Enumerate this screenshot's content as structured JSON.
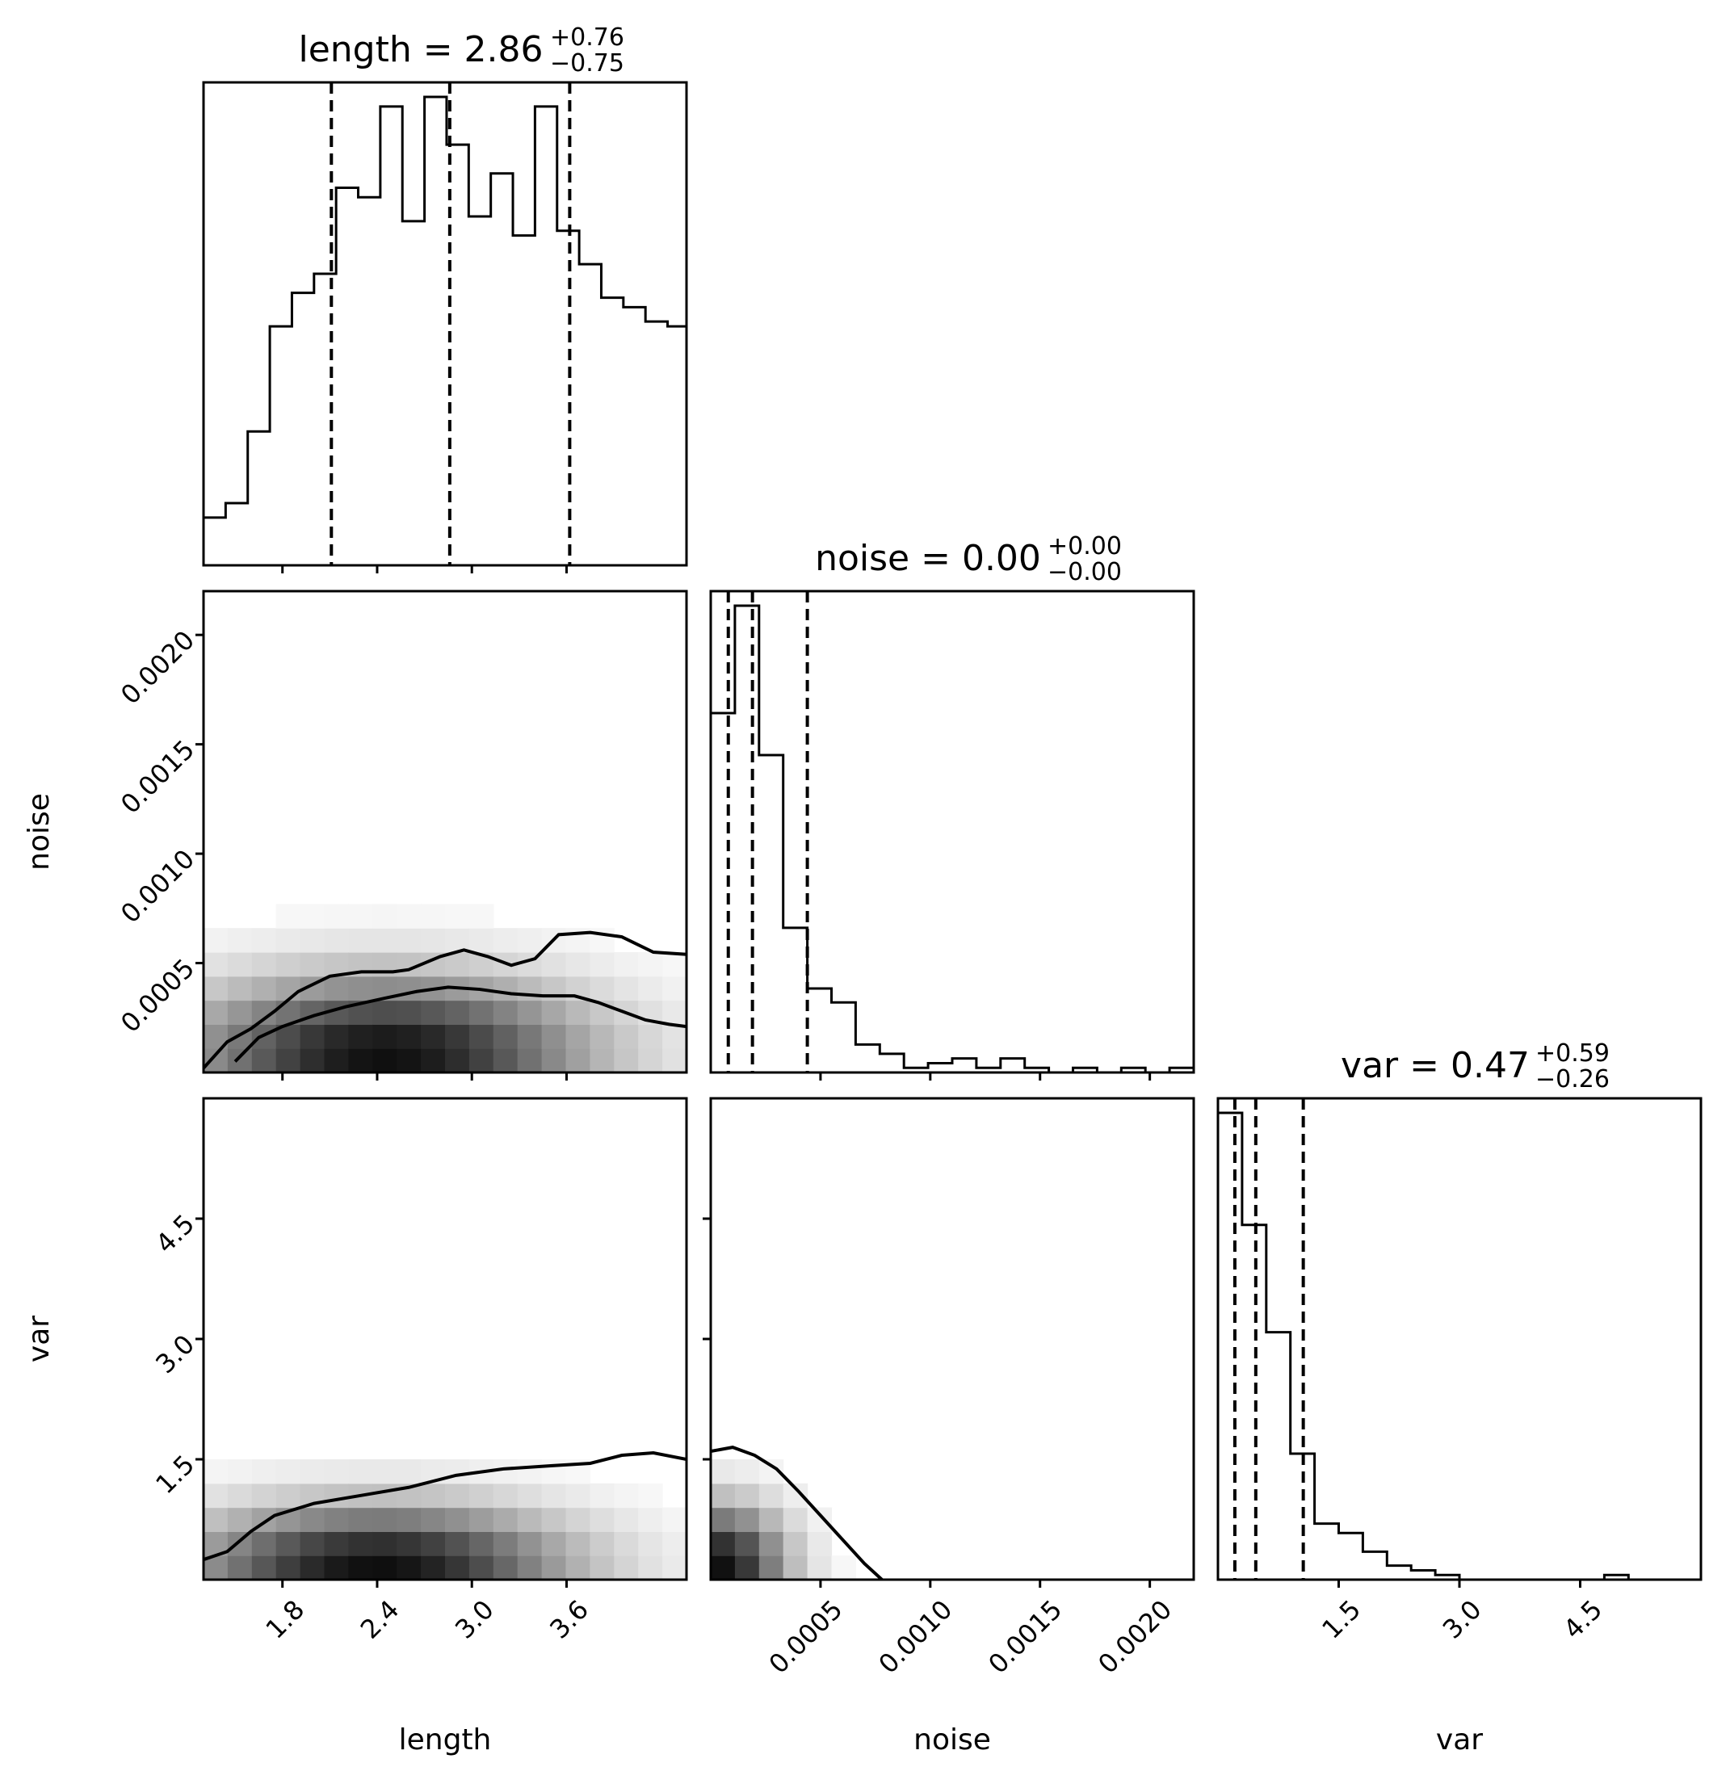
{
  "chart_data": {
    "type": "corner-plot",
    "parameters": [
      {
        "name": "length",
        "axis_label": "length",
        "title": {
          "prefix": "length = ",
          "value": "2.86",
          "plus": "+0.76",
          "minus": "−0.75"
        },
        "range": [
          1.3,
          4.36
        ],
        "ticks": [
          "1.8",
          "2.4",
          "3.0",
          "3.6"
        ],
        "tick_values": [
          1.8,
          2.4,
          3.0,
          3.6
        ],
        "quantiles": [
          2.11,
          2.86,
          3.62
        ],
        "histogram_bins": [
          1.3,
          1.44,
          1.58,
          1.72,
          1.86,
          2.0,
          2.14,
          2.28,
          2.42,
          2.56,
          2.7,
          2.84,
          2.98,
          3.12,
          3.26,
          3.4,
          3.54,
          3.68,
          3.82,
          3.96,
          4.1,
          4.24,
          4.36
        ],
        "histogram_counts": [
          10,
          13,
          28,
          50,
          57,
          61,
          79,
          77,
          96,
          72,
          98,
          88,
          73,
          82,
          69,
          96,
          70,
          63,
          56,
          54,
          51,
          50
        ]
      },
      {
        "name": "noise",
        "axis_label": "noise",
        "title": {
          "prefix": "noise = ",
          "value": "0.00",
          "plus": "+0.00",
          "minus": "−0.00"
        },
        "range": [
          0.0,
          0.0022
        ],
        "ticks": [
          "0.0005",
          "0.0010",
          "0.0015",
          "0.0020"
        ],
        "tick_values": [
          0.0005,
          0.001,
          0.0015,
          0.002
        ],
        "quantiles": [
          8e-05,
          0.00019,
          0.00044
        ],
        "histogram_bins": [
          0.0,
          0.00011,
          0.00022,
          0.00033,
          0.00044,
          0.00055,
          0.00066,
          0.00077,
          0.00088,
          0.00099,
          0.0011,
          0.00121,
          0.00132,
          0.00143,
          0.00154,
          0.00165,
          0.00176,
          0.00187,
          0.00198,
          0.00209,
          0.0022
        ],
        "histogram_counts": [
          77,
          100,
          68,
          31,
          18,
          15,
          6,
          4,
          1,
          2,
          3,
          1,
          3,
          1,
          0,
          1,
          0,
          1,
          0,
          1
        ]
      },
      {
        "name": "var",
        "axis_label": "var",
        "title": {
          "prefix": "var = ",
          "value": "0.47",
          "plus": "+0.59",
          "minus": "−0.26"
        },
        "range": [
          0.0,
          6.0
        ],
        "ticks": [
          "1.5",
          "3.0",
          "4.5"
        ],
        "tick_values": [
          1.5,
          3.0,
          4.5
        ],
        "quantiles": [
          0.21,
          0.47,
          1.06
        ],
        "histogram_bins": [
          0.0,
          0.3,
          0.6,
          0.9,
          1.2,
          1.5,
          1.8,
          2.1,
          2.4,
          2.7,
          3.0,
          3.3,
          3.6,
          3.9,
          4.2,
          4.5,
          4.8,
          5.1,
          5.4,
          5.7,
          6.0
        ],
        "histogram_counts": [
          100,
          76,
          53,
          27,
          12,
          10,
          6,
          3,
          2,
          1,
          0,
          0,
          0,
          0,
          0,
          0,
          1,
          0,
          0,
          0
        ]
      }
    ],
    "pairs": [
      {
        "x": "length",
        "y": "noise",
        "contour_levels": [
          {
            "x": [
              1.3,
              1.45,
              1.6,
              1.75,
              1.9,
              2.1,
              2.3,
              2.5,
              2.6,
              2.8,
              2.95,
              3.1,
              3.25,
              3.4,
              3.55,
              3.75,
              3.95,
              4.15,
              4.36
            ],
            "y": [
              2e-05,
              0.00014,
              0.0002,
              0.00028,
              0.00037,
              0.00044,
              0.00046,
              0.00046,
              0.00047,
              0.00053,
              0.00056,
              0.00053,
              0.00049,
              0.00052,
              0.00063,
              0.00064,
              0.00062,
              0.00055,
              0.00054
            ]
          },
          {
            "x": [
              1.5,
              1.65,
              1.8,
              2.0,
              2.2,
              2.45,
              2.65,
              2.85,
              3.05,
              3.25,
              3.45,
              3.65,
              3.8,
              3.95,
              4.1,
              4.25,
              4.36
            ],
            "y": [
              5e-05,
              0.00016,
              0.00021,
              0.00026,
              0.0003,
              0.00034,
              0.00037,
              0.00039,
              0.00038,
              0.00036,
              0.00035,
              0.00035,
              0.00032,
              0.00028,
              0.00024,
              0.00022,
              0.00021
            ]
          }
        ]
      },
      {
        "x": "length",
        "y": "var",
        "contour_levels": [
          {
            "x": [
              1.3,
              1.45,
              1.6,
              1.75,
              2.0,
              2.3,
              2.6,
              2.9,
              3.2,
              3.5,
              3.75,
              3.95,
              4.15,
              4.36
            ],
            "y": [
              0.25,
              0.35,
              0.6,
              0.8,
              0.95,
              1.05,
              1.15,
              1.3,
              1.38,
              1.42,
              1.45,
              1.55,
              1.58,
              1.5
            ]
          }
        ]
      },
      {
        "x": "noise",
        "y": "var",
        "contour_levels": [
          {
            "x": [
              0.0,
              0.0001,
              0.0002,
              0.0003,
              0.0004,
              0.0005,
              0.0006,
              0.0007,
              0.00078
            ],
            "y": [
              1.6,
              1.65,
              1.55,
              1.38,
              1.1,
              0.8,
              0.5,
              0.2,
              0.0
            ]
          }
        ]
      }
    ]
  }
}
